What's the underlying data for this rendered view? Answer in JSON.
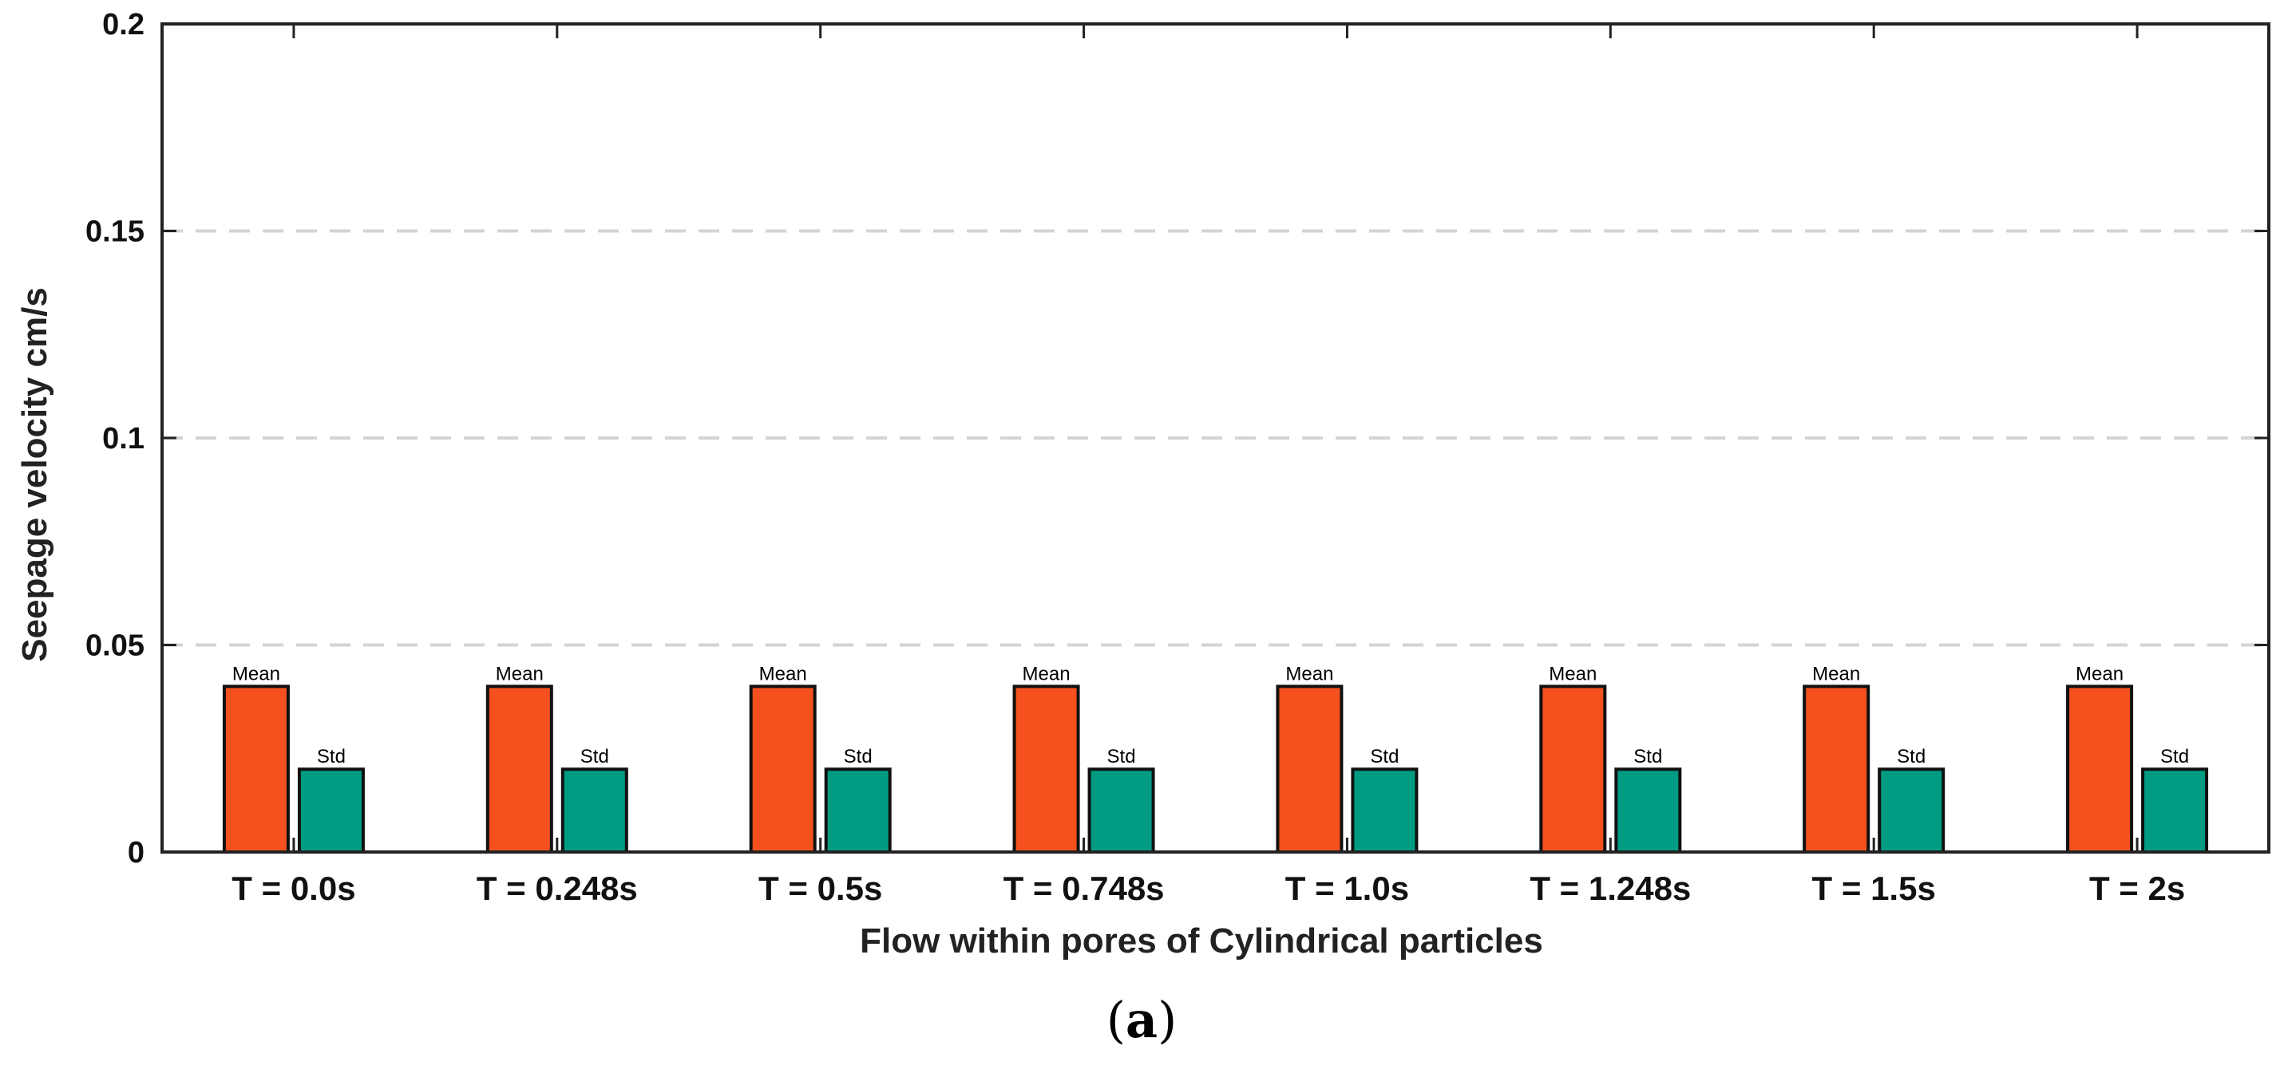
{
  "chart_data": {
    "type": "bar",
    "title": "",
    "xlabel": "Flow within pores of Cylindrical particles",
    "ylabel": "Seepage velocity cm/s",
    "ylim": [
      0,
      0.2
    ],
    "yticks": [
      0,
      0.05,
      0.1,
      0.15,
      0.2
    ],
    "ytick_labels": [
      "0",
      "0.05",
      "0.1",
      "0.15",
      "0.2"
    ],
    "grid": "dashed horizontal",
    "categories": [
      "T = 0.0s",
      "T = 0.248s",
      "T = 0.5s",
      "T = 0.748s",
      "T = 1.0s",
      "T = 1.248s",
      "T = 1.5s",
      "T = 2s"
    ],
    "series": [
      {
        "name": "Mean",
        "color": "#f4511e",
        "values": [
          0.04,
          0.04,
          0.04,
          0.04,
          0.04,
          0.04,
          0.04,
          0.04
        ]
      },
      {
        "name": "Std",
        "color": "#009c82",
        "values": [
          0.02,
          0.02,
          0.02,
          0.02,
          0.02,
          0.02,
          0.02,
          0.02
        ]
      }
    ]
  },
  "panel_label": {
    "open": "(",
    "letter": "a",
    "close": ")"
  }
}
